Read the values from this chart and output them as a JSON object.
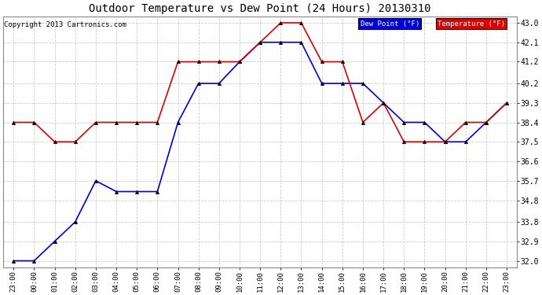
{
  "title": "Outdoor Temperature vs Dew Point (24 Hours) 20130310",
  "copyright": "Copyright 2013 Cartronics.com",
  "background_color": "#ffffff",
  "plot_bg_color": "#ffffff",
  "grid_color": "#cccccc",
  "x_labels": [
    "23:00",
    "00:00",
    "01:00",
    "02:00",
    "03:00",
    "04:00",
    "05:00",
    "06:00",
    "07:00",
    "08:00",
    "09:00",
    "10:00",
    "11:00",
    "12:00",
    "13:00",
    "14:00",
    "15:00",
    "16:00",
    "17:00",
    "18:00",
    "19:00",
    "20:00",
    "21:00",
    "22:00",
    "23:00"
  ],
  "dew_point": [
    32.0,
    32.0,
    32.9,
    33.8,
    35.7,
    35.2,
    35.2,
    35.2,
    38.4,
    40.2,
    40.2,
    41.2,
    42.1,
    42.1,
    42.1,
    40.2,
    40.2,
    40.2,
    39.3,
    38.4,
    38.4,
    37.5,
    37.5,
    38.4,
    39.3
  ],
  "temperature": [
    38.4,
    38.4,
    37.5,
    37.5,
    38.4,
    38.4,
    38.4,
    38.4,
    41.2,
    41.2,
    41.2,
    41.2,
    42.1,
    43.0,
    43.0,
    41.2,
    41.2,
    38.4,
    39.3,
    37.5,
    37.5,
    37.5,
    38.4,
    38.4,
    39.3
  ],
  "dew_color": "#0000dd",
  "temp_color": "#dd0000",
  "ylim_min": 32.0,
  "ylim_max": 43.0,
  "ytick_values": [
    32.0,
    32.9,
    33.8,
    34.8,
    35.7,
    36.6,
    37.5,
    38.4,
    39.3,
    40.2,
    41.2,
    42.1,
    43.0
  ],
  "legend_dew_label": "Dew Point (°F)",
  "legend_temp_label": "Temperature (°F)",
  "marker": "^",
  "marker_size": 3,
  "line_width": 1.2
}
